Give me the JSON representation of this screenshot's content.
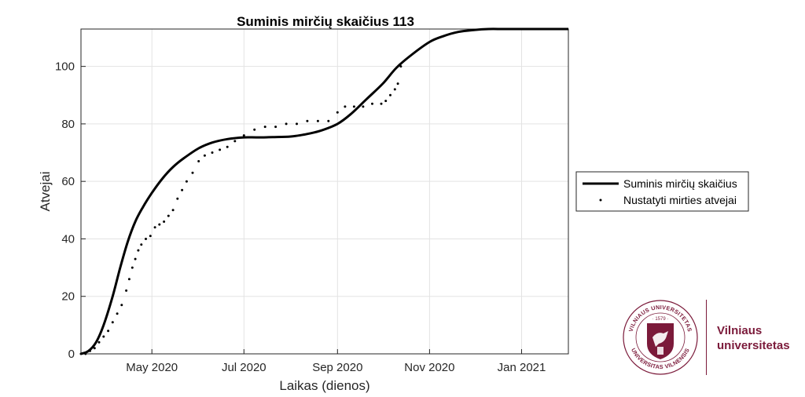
{
  "chart_data": {
    "type": "line",
    "title": "Suminis mirčių skaičius  113",
    "xlabel": "Laikas (dienos)",
    "ylabel": "Atvejai",
    "xlim": [
      "2020-03-15",
      "2021-02-01"
    ],
    "ylim": [
      0,
      113
    ],
    "x_tick_labels": [
      "May 2020",
      "Jul 2020",
      "Sep 2020",
      "Nov 2020",
      "Jan 2021"
    ],
    "x_ticks": [
      "2020-05-01",
      "2020-07-01",
      "2020-09-01",
      "2020-11-01",
      "2021-01-01"
    ],
    "y_ticks": [
      0,
      20,
      40,
      60,
      80,
      100
    ],
    "grid": true,
    "legend_position": "right",
    "series": [
      {
        "name": "Suminis mirčių skaičius",
        "style": "line",
        "color": "#000000",
        "x": [
          "2020-03-15",
          "2020-03-20",
          "2020-03-25",
          "2020-03-30",
          "2020-04-05",
          "2020-04-10",
          "2020-04-15",
          "2020-04-20",
          "2020-04-25",
          "2020-05-01",
          "2020-05-08",
          "2020-05-15",
          "2020-05-22",
          "2020-06-01",
          "2020-06-10",
          "2020-06-20",
          "2020-07-01",
          "2020-07-10",
          "2020-07-20",
          "2020-08-01",
          "2020-08-10",
          "2020-08-20",
          "2020-09-01",
          "2020-09-10",
          "2020-09-20",
          "2020-10-01",
          "2020-10-10",
          "2020-10-20",
          "2020-11-01",
          "2020-11-10",
          "2020-11-20",
          "2020-12-01",
          "2020-12-10",
          "2020-12-20",
          "2021-01-01",
          "2021-01-15",
          "2021-02-01"
        ],
        "y": [
          0,
          1,
          4,
          10,
          20,
          30,
          39,
          46,
          51,
          56,
          61,
          65,
          68,
          71.5,
          73.5,
          74.7,
          75.3,
          75.3,
          75.4,
          75.6,
          76.3,
          77.5,
          80,
          83.5,
          88.5,
          94,
          99.5,
          104,
          108.5,
          110.5,
          112,
          112.7,
          113,
          113,
          113,
          113,
          113
        ]
      },
      {
        "name": "Nustatyti mirties atvejai",
        "style": "scatter",
        "color": "#000000",
        "x": [
          "2020-03-15",
          "2020-03-18",
          "2020-03-21",
          "2020-03-24",
          "2020-03-27",
          "2020-03-30",
          "2020-04-02",
          "2020-04-05",
          "2020-04-08",
          "2020-04-11",
          "2020-04-14",
          "2020-04-16",
          "2020-04-18",
          "2020-04-20",
          "2020-04-22",
          "2020-04-24",
          "2020-04-27",
          "2020-04-30",
          "2020-05-03",
          "2020-05-06",
          "2020-05-09",
          "2020-05-12",
          "2020-05-15",
          "2020-05-18",
          "2020-05-21",
          "2020-05-24",
          "2020-05-28",
          "2020-06-01",
          "2020-06-05",
          "2020-06-10",
          "2020-06-15",
          "2020-06-20",
          "2020-06-25",
          "2020-07-01",
          "2020-07-08",
          "2020-07-15",
          "2020-07-22",
          "2020-07-29",
          "2020-08-05",
          "2020-08-12",
          "2020-08-19",
          "2020-08-26",
          "2020-09-01",
          "2020-09-06",
          "2020-09-12",
          "2020-09-18",
          "2020-09-24",
          "2020-09-30",
          "2020-10-03",
          "2020-10-06",
          "2020-10-09",
          "2020-10-11",
          "2020-10-13"
        ],
        "y": [
          0,
          0,
          1,
          2,
          4,
          6,
          8,
          11,
          14,
          17,
          22,
          26,
          30,
          33,
          36,
          38,
          40,
          41,
          44,
          45,
          46,
          48,
          50,
          54,
          57,
          60,
          63,
          67,
          69,
          70,
          71,
          72,
          74,
          76,
          78,
          79,
          79,
          80,
          80,
          81,
          81,
          81,
          84,
          86,
          86,
          86,
          87,
          87,
          88,
          90,
          92,
          94,
          100
        ]
      }
    ]
  },
  "logo": {
    "name_line1": "Vilniaus",
    "name_line2": "universitetas",
    "seal_top_text": "VILNIAUS UNIVERSITETAS",
    "seal_bottom_text": "UNIVERSITAS VILNENSIS",
    "seal_year": "· 1579 ·",
    "brand_color": "#7b1a3a"
  }
}
